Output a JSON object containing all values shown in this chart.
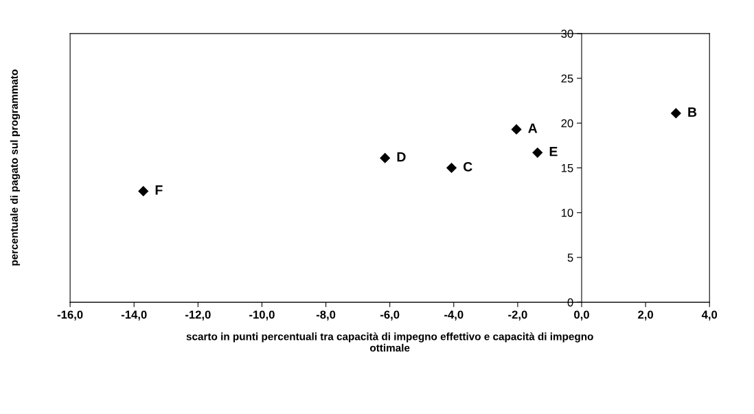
{
  "chart_data": {
    "type": "scatter",
    "xlabel": "scarto in punti percentuali tra capacità di impegno effettivo e capacità di impegno\nottimale",
    "ylabel": "percentuale di pagato sul programmato",
    "x": [
      -2.04,
      2.95,
      -4.07,
      -6.15,
      -1.38,
      -13.71
    ],
    "series": [
      {
        "color": "#000000",
        "values": [
          19.3,
          21.1,
          15.0,
          16.1,
          16.7,
          12.4
        ]
      }
    ],
    "marker": "diamond",
    "annotations": [
      {
        "text": "A",
        "x": -2.04,
        "y": 19.3
      },
      {
        "text": "B",
        "x": 2.95,
        "y": 21.1
      },
      {
        "text": "C",
        "x": -4.07,
        "y": 15.0
      },
      {
        "text": "D",
        "x": -6.15,
        "y": 16.1
      },
      {
        "text": "E",
        "x": -1.38,
        "y": 16.7
      },
      {
        "text": "F",
        "x": -13.71,
        "y": 12.4
      }
    ],
    "xlim": [
      -16,
      4
    ],
    "ylim": [
      0,
      30
    ],
    "xticks": [
      {
        "value": -16,
        "label": "-16,0"
      },
      {
        "value": -14,
        "label": "-14,0"
      },
      {
        "value": -12,
        "label": "-12,0"
      },
      {
        "value": -10,
        "label": "-10,0"
      },
      {
        "value": -8,
        "label": "-8,0"
      },
      {
        "value": -6,
        "label": "-6,0"
      },
      {
        "value": -4,
        "label": "-4,0"
      },
      {
        "value": -2,
        "label": "-2,0"
      },
      {
        "value": 0,
        "label": "0,0"
      },
      {
        "value": 2,
        "label": "2,0"
      },
      {
        "value": 4,
        "label": "4,0"
      }
    ],
    "yticks": [
      0,
      5,
      10,
      15,
      20,
      25,
      30
    ],
    "grid": false,
    "legend": false
  }
}
